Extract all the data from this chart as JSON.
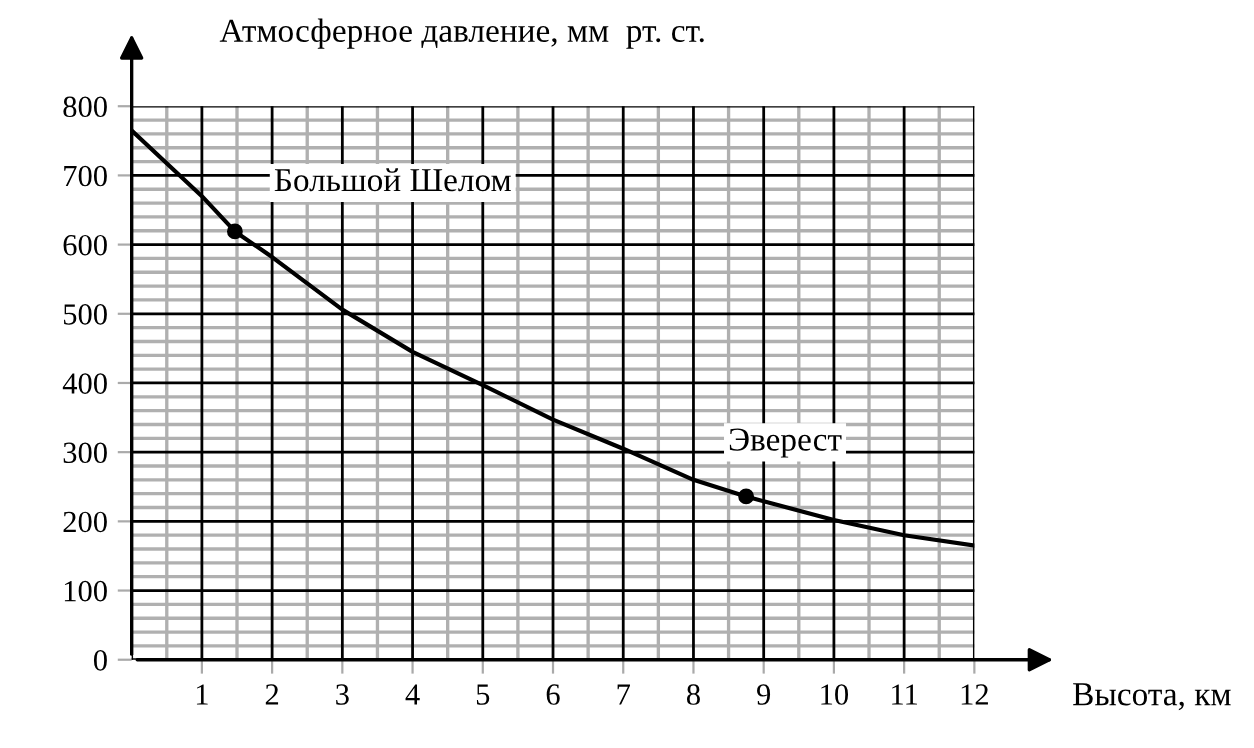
{
  "chart_data": {
    "type": "line",
    "ylabel": "Атмосферное давление, мм  рт. ст.",
    "xlabel": "Высота, км",
    "series": [
      {
        "marker": "none",
        "color": "#000000",
        "x": [
          0,
          1,
          1.47,
          2,
          3,
          4,
          5,
          6,
          7,
          8,
          8.75,
          9,
          10,
          11,
          12
        ],
        "values": [
          765,
          670,
          619,
          582,
          506,
          445,
          397,
          347,
          305,
          260,
          236,
          229,
          202,
          180,
          165
        ]
      },
      {
        "type": "scatter",
        "marker": "circle",
        "color": "#000000",
        "x": [
          1.47,
          8.75
        ],
        "values": [
          619,
          236
        ]
      }
    ],
    "annotations": [
      {
        "text": "Большой Шелом",
        "x": 1.47,
        "y": 619
      },
      {
        "text": "Эверест",
        "x": 8.75,
        "y": 236
      }
    ],
    "xlim": [
      0,
      12
    ],
    "ylim": [
      0,
      800
    ],
    "xticks": [
      1,
      2,
      3,
      4,
      5,
      6,
      7,
      8,
      9,
      10,
      11,
      12
    ],
    "yticks": [
      0,
      100,
      200,
      300,
      400,
      500,
      600,
      700,
      800
    ],
    "grid": true,
    "line_style": "solid"
  }
}
